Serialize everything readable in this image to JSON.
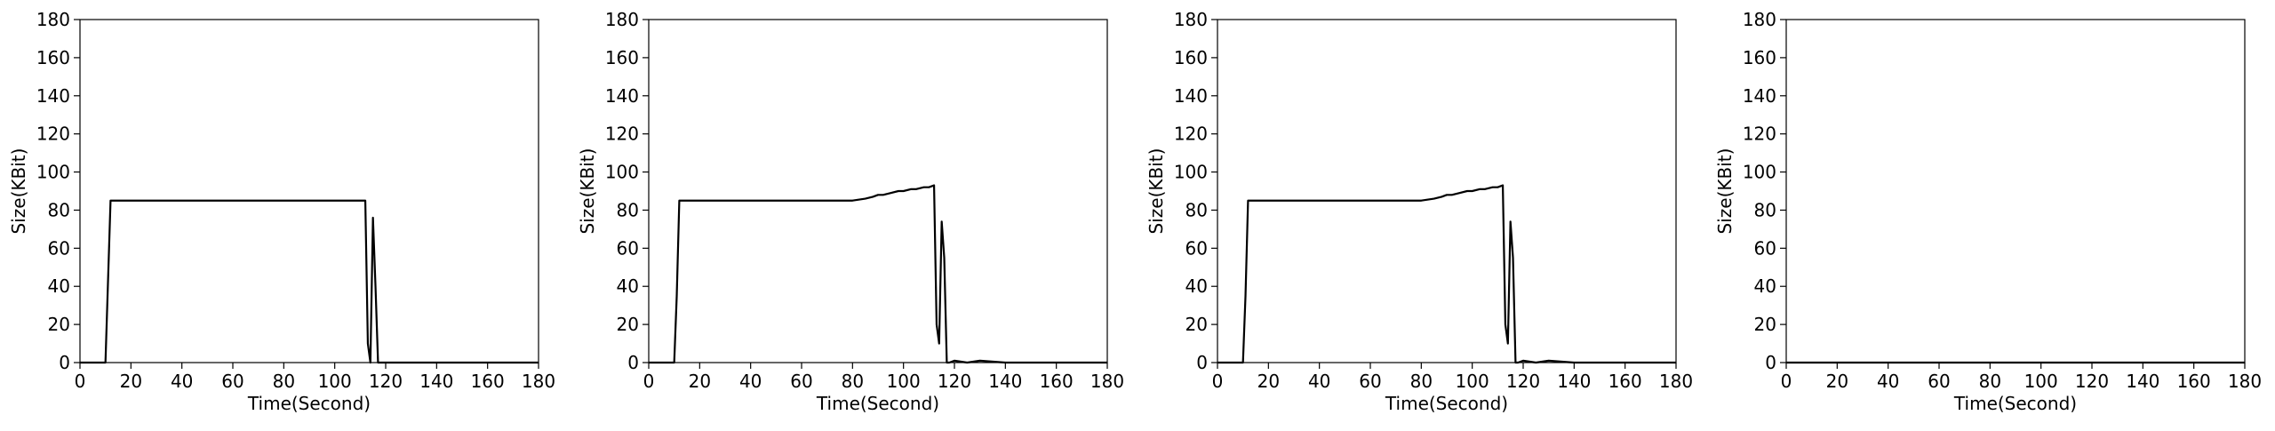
{
  "chart_data": [
    {
      "type": "line",
      "xlabel": "Time(Second)",
      "ylabel": "Size(KBit)",
      "xlim": [
        0,
        180
      ],
      "ylim": [
        0,
        180
      ],
      "xticks": [
        0,
        20,
        40,
        60,
        80,
        100,
        120,
        140,
        160,
        180
      ],
      "yticks": [
        0,
        20,
        40,
        60,
        80,
        100,
        120,
        140,
        160,
        180
      ],
      "grid": false,
      "line_color": "#000000",
      "series": [
        {
          "x": [
            0,
            10,
            12,
            20,
            30,
            40,
            50,
            60,
            70,
            80,
            90,
            100,
            110,
            112,
            113,
            114,
            115,
            116,
            117,
            118,
            130,
            140,
            150,
            160,
            170,
            180
          ],
          "y": [
            0,
            0,
            85,
            85,
            85,
            85,
            85,
            85,
            85,
            85,
            85,
            85,
            85,
            85,
            10,
            0,
            76,
            40,
            0,
            0,
            0,
            0,
            0,
            0,
            0,
            0
          ]
        }
      ]
    },
    {
      "type": "line",
      "xlabel": "Time(Second)",
      "ylabel": "Size(KBit)",
      "xlim": [
        0,
        180
      ],
      "ylim": [
        0,
        180
      ],
      "xticks": [
        0,
        20,
        40,
        60,
        80,
        100,
        120,
        140,
        160,
        180
      ],
      "yticks": [
        0,
        20,
        40,
        60,
        80,
        100,
        120,
        140,
        160,
        180
      ],
      "grid": false,
      "line_color": "#000000",
      "series": [
        {
          "x": [
            0,
            10,
            11,
            12,
            15,
            20,
            30,
            40,
            50,
            60,
            70,
            80,
            85,
            88,
            90,
            92,
            95,
            98,
            100,
            103,
            105,
            108,
            110,
            112,
            113,
            114,
            115,
            116,
            117,
            118,
            120,
            125,
            130,
            140,
            150,
            160,
            170,
            180
          ],
          "y": [
            0,
            0,
            35,
            85,
            85,
            85,
            85,
            85,
            85,
            85,
            85,
            85,
            86,
            87,
            88,
            88,
            89,
            90,
            90,
            91,
            91,
            92,
            92,
            93,
            20,
            10,
            74,
            55,
            0,
            0,
            1,
            0,
            1,
            0,
            0,
            0,
            0,
            0
          ]
        }
      ]
    },
    {
      "type": "line",
      "xlabel": "Time(Second)",
      "ylabel": "Size(KBit)",
      "xlim": [
        0,
        180
      ],
      "ylim": [
        0,
        180
      ],
      "xticks": [
        0,
        20,
        40,
        60,
        80,
        100,
        120,
        140,
        160,
        180
      ],
      "yticks": [
        0,
        20,
        40,
        60,
        80,
        100,
        120,
        140,
        160,
        180
      ],
      "grid": false,
      "line_color": "#000000",
      "series": [
        {
          "x": [
            0,
            10,
            11,
            12,
            15,
            20,
            30,
            40,
            50,
            60,
            70,
            80,
            85,
            88,
            90,
            92,
            95,
            98,
            100,
            103,
            105,
            108,
            110,
            112,
            113,
            114,
            115,
            116,
            117,
            118,
            120,
            125,
            130,
            140,
            150,
            160,
            170,
            180
          ],
          "y": [
            0,
            0,
            35,
            85,
            85,
            85,
            85,
            85,
            85,
            85,
            85,
            85,
            86,
            87,
            88,
            88,
            89,
            90,
            90,
            91,
            91,
            92,
            92,
            93,
            20,
            10,
            74,
            55,
            0,
            0,
            1,
            0,
            1,
            0,
            0,
            0,
            0,
            0
          ]
        }
      ]
    },
    {
      "type": "line",
      "xlabel": "Time(Second)",
      "ylabel": "Size(KBit)",
      "xlim": [
        0,
        180
      ],
      "ylim": [
        0,
        180
      ],
      "xticks": [
        0,
        20,
        40,
        60,
        80,
        100,
        120,
        140,
        160,
        180
      ],
      "yticks": [
        0,
        20,
        40,
        60,
        80,
        100,
        120,
        140,
        160,
        180
      ],
      "grid": false,
      "line_color": "#000000",
      "series": [
        {
          "x": [
            0,
            20,
            40,
            60,
            80,
            100,
            120,
            140,
            160,
            180
          ],
          "y": [
            0,
            0,
            0,
            0,
            0,
            0,
            0,
            0,
            0,
            0
          ]
        }
      ]
    }
  ]
}
